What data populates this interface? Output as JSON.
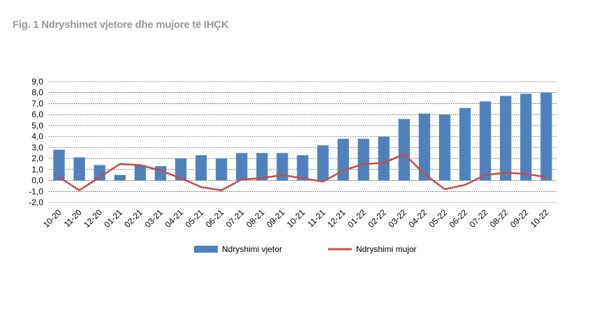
{
  "title": "Fig. 1 Ndryshimet vjetore dhe mujore të IHÇK",
  "colors": {
    "bar": "#4f81bd",
    "line": "#c0504d",
    "grid": "#000000",
    "title": "#9a9a9a"
  },
  "chart_data": {
    "type": "bar",
    "title": "Fig. 1 Ndryshimet vjetore dhe mujore të IHÇK",
    "categories": [
      "10-20",
      "11-20",
      "12-20",
      "01-21",
      "02-21",
      "03-21",
      "04-21",
      "05-21",
      "06-21",
      "07-21",
      "08-21",
      "09-21",
      "10-21",
      "11-21",
      "12-21",
      "01-22",
      "02-22",
      "03-22",
      "04-22",
      "05-22",
      "06-22",
      "07-22",
      "08-22",
      "09-22",
      "10-22"
    ],
    "series": [
      {
        "name": "Ndryshimi vjetor",
        "type": "bar",
        "values": [
          2.8,
          2.1,
          1.4,
          0.5,
          1.4,
          1.3,
          2.0,
          2.3,
          2.0,
          2.5,
          2.5,
          2.5,
          2.3,
          3.2,
          3.8,
          3.8,
          4.0,
          5.6,
          6.1,
          6.0,
          6.6,
          7.2,
          7.7,
          7.9,
          8.0
        ]
      },
      {
        "name": "Ndryshimi mujor",
        "type": "line",
        "values": [
          0.3,
          -0.9,
          0.3,
          1.5,
          1.4,
          0.9,
          0.2,
          -0.6,
          -0.9,
          0.1,
          0.2,
          0.5,
          0.2,
          -0.1,
          0.9,
          1.5,
          1.6,
          2.4,
          0.6,
          -0.8,
          -0.4,
          0.5,
          0.7,
          0.6,
          0.3
        ]
      }
    ],
    "ylim": [
      -2.0,
      9.0
    ],
    "y_ticks": [
      "-2,0",
      "-1,0",
      "0,0",
      "1,0",
      "2,0",
      "3,0",
      "4,0",
      "5,0",
      "6,0",
      "7,0",
      "8,0",
      "9,0"
    ],
    "xlabel": "",
    "ylabel": "",
    "grid": true,
    "legend": "bottom"
  }
}
